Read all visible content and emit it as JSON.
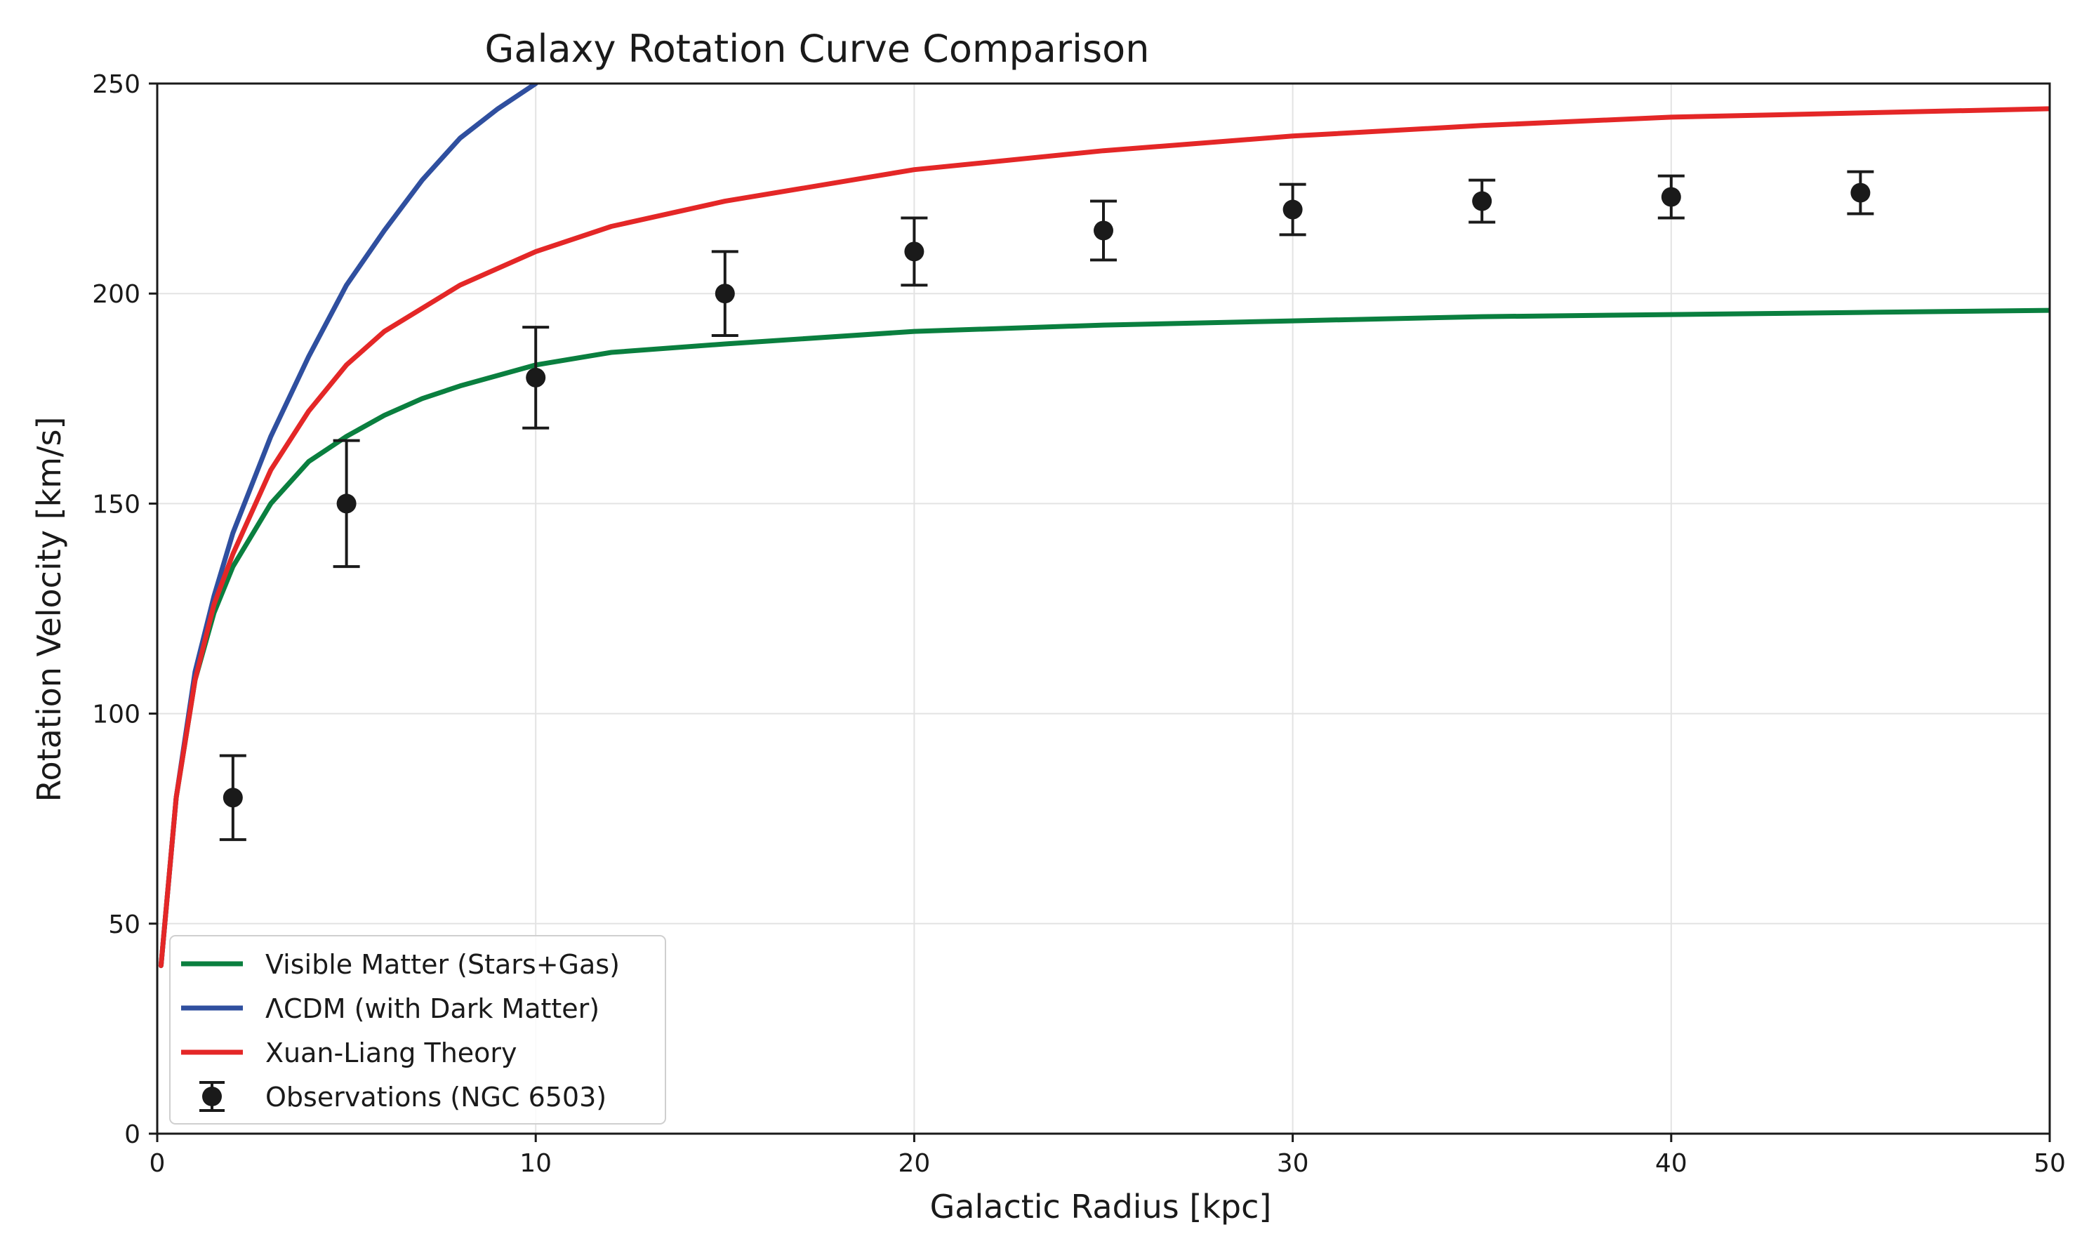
{
  "chart_data": {
    "type": "line",
    "title": "Galaxy Rotation Curve Comparison",
    "xlabel": "Galactic Radius [kpc]",
    "ylabel": "Rotation Velocity [km/s]",
    "xlim": [
      0,
      50
    ],
    "ylim": [
      0,
      250
    ],
    "xticks": [
      "0",
      "10",
      "20",
      "30",
      "40",
      "50"
    ],
    "yticks": [
      "0",
      "50",
      "100",
      "150",
      "200",
      "250"
    ],
    "grid": true,
    "legend_position": "bottom-left",
    "series": [
      {
        "name": "Visible Matter (Stars+Gas)",
        "color": "#0a7f3f",
        "x": [
          0.1,
          0.5,
          1,
          1.5,
          2,
          3,
          4,
          5,
          6,
          7,
          8,
          10,
          12,
          15,
          20,
          25,
          30,
          35,
          40,
          45,
          50
        ],
        "y": [
          40,
          80,
          108,
          124,
          135,
          150,
          160,
          166,
          171,
          175,
          178,
          183,
          186,
          188,
          191,
          192.5,
          193.5,
          194.5,
          195,
          195.5,
          196
        ]
      },
      {
        "name": "ΛCDM (with Dark Matter)",
        "color": "#2f4f9f",
        "x": [
          0.1,
          0.5,
          1,
          1.5,
          2,
          3,
          4,
          5,
          6,
          7,
          8,
          9,
          10
        ],
        "y": [
          40,
          80,
          110,
          128,
          143,
          166,
          185,
          202,
          215,
          227,
          237,
          244,
          250
        ]
      },
      {
        "name": "Xuan-Liang Theory",
        "color": "#e42727",
        "x": [
          0.1,
          0.5,
          1,
          1.5,
          2,
          3,
          4,
          5,
          6,
          8,
          10,
          12,
          15,
          20,
          25,
          30,
          35,
          40,
          45,
          50
        ],
        "y": [
          40,
          80,
          108,
          126,
          138,
          158,
          172,
          183,
          191,
          202,
          210,
          216,
          222,
          229.5,
          234,
          237.5,
          240,
          242,
          243,
          244
        ]
      },
      {
        "name": "Observations (NGC 6503)",
        "color": "#1a1a1a",
        "x": [
          2,
          5,
          10,
          15,
          20,
          25,
          30,
          35,
          40,
          45
        ],
        "y": [
          80,
          150,
          180,
          200,
          210,
          215,
          220,
          222,
          223,
          224
        ],
        "yerr": [
          10,
          15,
          12,
          10,
          8,
          7,
          6,
          5,
          5,
          5
        ]
      }
    ]
  }
}
